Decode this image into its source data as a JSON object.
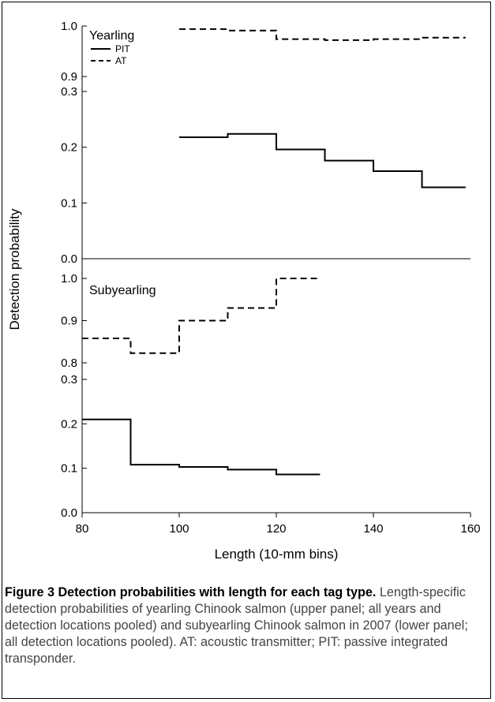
{
  "chart_data": {
    "type": "line",
    "step": true,
    "ylabel": "Detection probability",
    "xlabel": "Length (10-mm bins)",
    "xlim": [
      80,
      160
    ],
    "x_ticks": [
      80,
      100,
      120,
      140,
      160
    ],
    "panels": [
      {
        "label": "Yearling",
        "broken_axis": true,
        "upper": {
          "ylim": [
            0.9,
            1.0
          ],
          "y_ticks": [
            "0.9",
            "1.0"
          ]
        },
        "lower": {
          "ylim": [
            0.0,
            0.3
          ],
          "y_ticks": [
            "0.0",
            "0.1",
            "0.2",
            "0.3"
          ]
        },
        "series": [
          {
            "name": "PIT",
            "style": "solid",
            "segment": "lower",
            "steps": [
              [
                100,
                110,
                0.218
              ],
              [
                110,
                120,
                0.224
              ],
              [
                120,
                130,
                0.196
              ],
              [
                130,
                140,
                0.176
              ],
              [
                140,
                150,
                0.157
              ],
              [
                150,
                159,
                0.128
              ]
            ]
          },
          {
            "name": "AT",
            "style": "dashed",
            "segment": "upper",
            "steps": [
              [
                100,
                110,
                0.994
              ],
              [
                110,
                120,
                0.991
              ],
              [
                120,
                130,
                0.974
              ],
              [
                130,
                140,
                0.972
              ],
              [
                140,
                150,
                0.974
              ],
              [
                150,
                159,
                0.977
              ]
            ]
          }
        ]
      },
      {
        "label": "Subyearling",
        "broken_axis": true,
        "upper": {
          "ylim": [
            0.8,
            1.0
          ],
          "y_ticks": [
            "0.8",
            "0.9",
            "1.0"
          ]
        },
        "lower": {
          "ylim": [
            0.0,
            0.3
          ],
          "y_ticks": [
            "0.0",
            "0.1",
            "0.2",
            "0.3"
          ]
        },
        "series": [
          {
            "name": "PIT",
            "style": "solid",
            "segment": "lower",
            "steps": [
              [
                80,
                90,
                0.21
              ],
              [
                90,
                100,
                0.108
              ],
              [
                100,
                110,
                0.103
              ],
              [
                110,
                120,
                0.097
              ],
              [
                120,
                129,
                0.086
              ]
            ]
          },
          {
            "name": "AT",
            "style": "dashed",
            "segment": "upper",
            "steps": [
              [
                80,
                90,
                0.858
              ],
              [
                90,
                100,
                0.823
              ],
              [
                100,
                110,
                0.9
              ],
              [
                110,
                120,
                0.93
              ],
              [
                120,
                129,
                1.0
              ]
            ]
          }
        ]
      }
    ],
    "legend": {
      "placement": "top-left",
      "entries": [
        "PIT",
        "AT"
      ]
    }
  },
  "caption": {
    "title": "Figure 3 Detection probabilities with length for each tag type.",
    "body": "Length-specific detection probabilities of yearling Chinook salmon (upper panel; all years and detection locations pooled) and subyearling Chinook salmon in 2007 (lower panel; all detection locations pooled). AT: acoustic transmitter; PIT: passive integrated transponder."
  }
}
